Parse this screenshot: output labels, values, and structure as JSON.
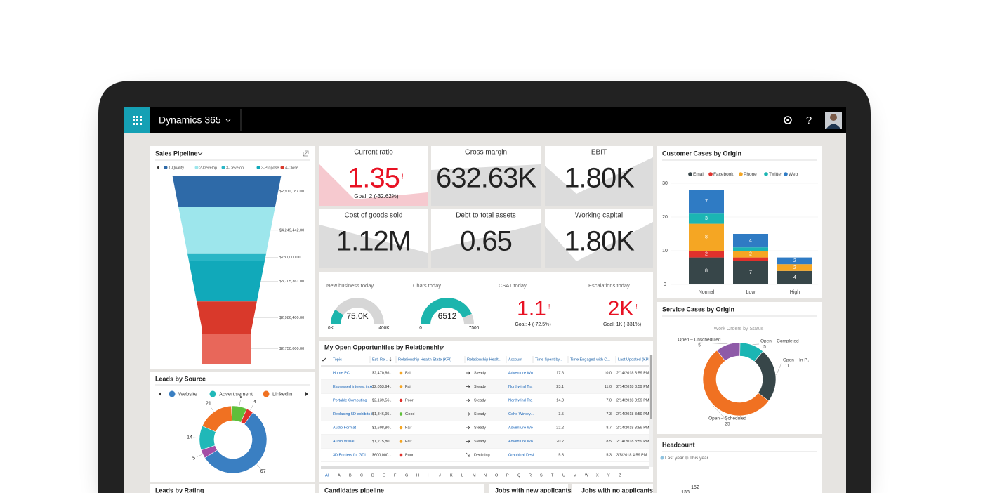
{
  "top_bar": {
    "app_name": "Dynamics 365",
    "help": "?"
  },
  "sales_pipeline": {
    "title": "Sales Pipeline",
    "legend": [
      {
        "name": "1-Qualify",
        "color": "#2e6aa8"
      },
      {
        "name": "2-Develop",
        "color": "#9de6ec"
      },
      {
        "name": "3-Develop",
        "color": "#2ab6c6"
      },
      {
        "name": "3-Propose",
        "color": "#11a9ba"
      },
      {
        "name": "4-Close",
        "color": "#d9392b"
      }
    ],
    "stages": [
      {
        "value": 2911187,
        "label": "$2,911,187.00",
        "color": "#2e6aa8"
      },
      {
        "value": 4249442,
        "label": "$4,249,442.00",
        "color": "#9de6ec"
      },
      {
        "value": 730000,
        "label": "$730,000.00",
        "color": "#2ab6c6"
      },
      {
        "value": 3705361,
        "label": "$3,705,361.00",
        "color": "#11a9ba"
      },
      {
        "value": 2986400,
        "label": "$2,986,400.00",
        "color": "#d9392b"
      },
      {
        "value": 2750000,
        "label": "$2,750,000.00",
        "color": "#e8675a"
      }
    ]
  },
  "leads_by_source": {
    "title": "Leads by Source",
    "legend": [
      {
        "name": "Website",
        "color": "#3a7fc2"
      },
      {
        "name": "Advertisement",
        "color": "#20b8b8"
      },
      {
        "name": "LinkedIn",
        "color": "#f07122"
      }
    ],
    "slices": [
      {
        "value": 21,
        "color": "#f07122"
      },
      {
        "value": 9,
        "color": "#5fbf3a"
      },
      {
        "value": 4,
        "color": "#e0312c"
      },
      {
        "value": 67,
        "color": "#3a7fc2"
      },
      {
        "value": 5,
        "color": "#a44ea6"
      },
      {
        "value": 14,
        "color": "#20b8b8"
      }
    ]
  },
  "kpis": [
    {
      "title": "Current ratio",
      "value": "1.35",
      "alert": "!",
      "goal": "Goal: 2 (-32.62%)"
    },
    {
      "title": "Gross margin",
      "value": "632.63K"
    },
    {
      "title": "EBIT",
      "value": "1.80K"
    },
    {
      "title": "Cost of goods sold",
      "value": "1.12M"
    },
    {
      "title": "Debt to total assets",
      "value": "0.65"
    },
    {
      "title": "Working capital",
      "value": "1.80K"
    }
  ],
  "gauges": [
    {
      "title": "New business today",
      "value": 75000,
      "label": "75.0K",
      "min": {
        "value": 0,
        "label": "0K"
      },
      "max": {
        "value": 400000,
        "label": "400K"
      }
    },
    {
      "title": "Chats today",
      "value": 6512,
      "min": 0,
      "max": 7500
    }
  ],
  "scorecards": [
    {
      "title": "CSAT today",
      "value": "1.1",
      "alert": "!",
      "goal": "Goal: 4 (-72.5%)"
    },
    {
      "title": "Escalations today",
      "value": "2K",
      "alert": "!",
      "goal": "Goal: 1K (-331%)"
    }
  ],
  "opportunities": {
    "title": "My Open Opportunities by Relationship",
    "columns": [
      "Topic",
      "Est. Re...",
      "Relationship Health State (KPI)",
      "Relationship Healt...",
      "Account",
      "Time Spent by...",
      "Time Engaged with C...",
      "Last Updated (KPI)"
    ],
    "rows": [
      {
        "cells": [
          "Home PC",
          "$2,470,86...",
          "Fair",
          "Steady",
          "Adventure Wo",
          "17.6",
          "10.0",
          "2/14/2018 3:59 PM"
        ],
        "health_color": "#f5a623",
        "trend": "flat"
      },
      {
        "cells": [
          "Expressed interest in A",
          "$2,053,94...",
          "Fair",
          "Steady",
          "Northwind Tra",
          "23.1",
          "11.0",
          "2/14/2018 3:59 PM"
        ],
        "health_color": "#f5a623",
        "trend": "flat"
      },
      {
        "cells": [
          "Portable Computing",
          "$2,139,56...",
          "Poor",
          "Steady",
          "Northwind Tra",
          "14.8",
          "7.0",
          "2/14/2018 3:59 PM"
        ],
        "health_color": "#e0312c",
        "trend": "flat"
      },
      {
        "cells": [
          "Replacing 5D exhibits i",
          "$1,846,95...",
          "Good",
          "Steady",
          "Coho Winery...",
          "3.5",
          "7.3",
          "2/14/2018 3:59 PM"
        ],
        "health_color": "#5fbf3a",
        "trend": "flat"
      },
      {
        "cells": [
          "Audio Format",
          "$1,608,80...",
          "Fair",
          "Steady",
          "Adventure Wo",
          "22.2",
          "8.7",
          "2/14/2018 3:59 PM"
        ],
        "health_color": "#f5a623",
        "trend": "flat"
      },
      {
        "cells": [
          "Audio Visual",
          "$1,275,80...",
          "Fair",
          "Steady",
          "Adventure Wo",
          "20.2",
          "8.5",
          "2/14/2018 3:59 PM"
        ],
        "health_color": "#f5a623",
        "trend": "flat"
      },
      {
        "cells": [
          "3D Printers for GDI",
          "$600,000...",
          "Poor",
          "Declining",
          "Graphical Desi",
          "5.3",
          "5.3",
          "3/5/2018 4:59 PM"
        ],
        "health_color": "#e0312c",
        "trend": "down"
      }
    ],
    "index": [
      "All",
      "A",
      "B",
      "C",
      "D",
      "E",
      "F",
      "G",
      "H",
      "I",
      "J",
      "K",
      "L",
      "M",
      "N",
      "O",
      "P",
      "Q",
      "R",
      "S",
      "T",
      "U",
      "V",
      "W",
      "X",
      "Y",
      "Z"
    ]
  },
  "customer_cases": {
    "type": "bar",
    "title": "Customer Cases by Origin",
    "categories": [
      "Normal",
      "Low",
      "High"
    ],
    "series": [
      {
        "name": "Email",
        "color": "#374649",
        "values": [
          8,
          7,
          4
        ]
      },
      {
        "name": "Facebook",
        "color": "#e0312c",
        "values": [
          2,
          1,
          null
        ]
      },
      {
        "name": "Phone",
        "color": "#f5a623",
        "values": [
          8,
          2,
          2
        ]
      },
      {
        "name": "Twitter",
        "color": "#1bb5b3",
        "values": [
          3,
          1,
          null
        ]
      },
      {
        "name": "Web",
        "color": "#2f7bc4",
        "values": [
          7,
          4,
          2
        ]
      }
    ],
    "ylim": [
      0,
      30
    ],
    "yticks": [
      0,
      10,
      20,
      30
    ],
    "grid": true
  },
  "service_cases": {
    "title": "Service Cases by Origin",
    "subtitle": "Work Orders by Status",
    "slices": [
      {
        "name": "Open – Unscheduled",
        "value": 5,
        "color": "#8e5aa8"
      },
      {
        "name": "Open – Completed",
        "value": 5,
        "color": "#1bb5b3"
      },
      {
        "name": "Open – In P...",
        "value": 11,
        "color": "#374649"
      },
      {
        "name": "Open – Scheduled",
        "value": 25,
        "color": "#f07122"
      }
    ]
  },
  "headcount": {
    "title": "Headcount",
    "legend": [
      {
        "name": "Last year",
        "color": "#8fc3e0"
      },
      {
        "name": "This year",
        "color": "#c8c8c8"
      }
    ],
    "labels": [
      152,
      138
    ]
  },
  "bottom_panels": [
    "Leads by Rating",
    "Candidates pipeline",
    "Jobs with new applicants",
    "Jobs with no applicants"
  ]
}
